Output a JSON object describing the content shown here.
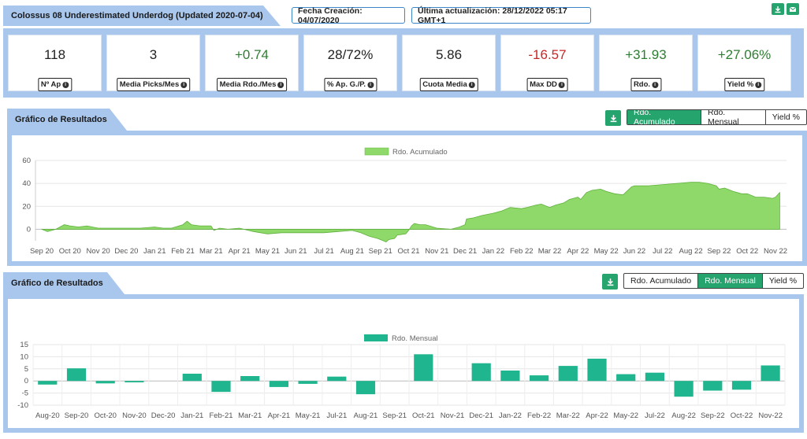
{
  "header": {
    "title": "Colossus 08 Underestimated Underdog (Updated 2020-07-04)",
    "fecha_creacion": "Fecha Creación: 04/07/2020",
    "ultima_actualizacion": "Última actualización: 28/12/2022 05:17 GMT+1",
    "icons": [
      "download-icon",
      "mail-icon"
    ]
  },
  "stats": [
    {
      "value": "118",
      "label": "Nº Ap",
      "tone": "neutral"
    },
    {
      "value": "3",
      "label": "Media Picks/Mes",
      "tone": "neutral"
    },
    {
      "value": "+0.74",
      "label": "Media Rdo./Mes",
      "tone": "pos"
    },
    {
      "value": "28/72%",
      "label": "% Ap. G./P.",
      "tone": "neutral"
    },
    {
      "value": "5.86",
      "label": "Cuota Media",
      "tone": "neutral"
    },
    {
      "value": "-16.57",
      "label": "Max DD",
      "tone": "neg"
    },
    {
      "value": "+31.93",
      "label": "Rdo.",
      "tone": "pos"
    },
    {
      "value": "+27.06%",
      "label": "Yield %",
      "tone": "pos"
    }
  ],
  "colors": {
    "accent": "#26a46e",
    "panel": "#a9c6ec",
    "area": "#8fd96a",
    "bar": "#1fb58e"
  },
  "chart1": {
    "title": "Gráfico de Resultados",
    "tabs": [
      {
        "label": "Rdo. Acumulado",
        "active": true
      },
      {
        "label": "Rdo. Mensual",
        "active": false
      },
      {
        "label": "Yield %",
        "active": false
      }
    ]
  },
  "chart2": {
    "title": "Gráfico de Resultados",
    "tabs": [
      {
        "label": "Rdo. Acumulado",
        "active": false
      },
      {
        "label": "Rdo. Mensual",
        "active": true
      },
      {
        "label": "Yield %",
        "active": false
      }
    ]
  },
  "chart_data": [
    {
      "type": "area",
      "legend": "Rdo. Acumulado",
      "legend_position": "top",
      "ylim": [
        -10,
        60
      ],
      "yticks": [
        0,
        20,
        40,
        60
      ],
      "xticks": [
        "Sep 20",
        "Oct 20",
        "Nov 20",
        "Dec 20",
        "Jan 21",
        "Feb 21",
        "Mar 21",
        "Apr 21",
        "May 21",
        "Jun 21",
        "Jul 21",
        "Aug 21",
        "Sep 21",
        "Oct 21",
        "Nov 21",
        "Dec 21",
        "Jan 22",
        "Feb 22",
        "Mar 22",
        "Apr 22",
        "May 22",
        "Jun 22",
        "Jul 22",
        "Aug 22",
        "Sep 22",
        "Oct 22",
        "Nov 22"
      ],
      "x": [
        0,
        0.2,
        0.5,
        0.8,
        1.0,
        1.3,
        1.6,
        2.0,
        2.5,
        3.0,
        3.5,
        4.0,
        4.3,
        4.6,
        5.0,
        5.15,
        5.3,
        5.6,
        6.0,
        6.1,
        6.3,
        6.6,
        7.0,
        7.5,
        8.0,
        8.5,
        9.0,
        9.5,
        10.0,
        10.5,
        11.0,
        11.3,
        11.6,
        11.9,
        12.0,
        12.1,
        12.2,
        12.3,
        12.5,
        12.6,
        12.9,
        13.0,
        13.1,
        13.2,
        13.4,
        13.6,
        14.0,
        14.5,
        14.8,
        15.0,
        15.05,
        15.3,
        15.6,
        16.0,
        16.3,
        16.6,
        17.0,
        17.2,
        17.5,
        17.7,
        18.0,
        18.2,
        18.5,
        18.7,
        19.0,
        19.1,
        19.3,
        19.5,
        19.8,
        20.0,
        20.3,
        20.6,
        20.9,
        21.0,
        21.5,
        22.0,
        22.5,
        23.0,
        23.3,
        23.6,
        23.9,
        24.0,
        24.2,
        24.5,
        24.8,
        25.0,
        25.3,
        25.6,
        25.9,
        26.0,
        26.15
      ],
      "y": [
        0,
        -2,
        0,
        4,
        3,
        2,
        3,
        1,
        1,
        1,
        1,
        2,
        1,
        1,
        4,
        7,
        4,
        3,
        3,
        -1,
        1,
        0,
        1,
        -2,
        -4,
        -3,
        -3,
        -3,
        -3,
        -2,
        -1,
        -3,
        -6,
        -8,
        -9,
        -10,
        -11,
        -9,
        -8,
        -5,
        -4,
        -1,
        3,
        5,
        4,
        4,
        1,
        0,
        2,
        4,
        9,
        10,
        12,
        14,
        16,
        19,
        18,
        19,
        21,
        22,
        19,
        21,
        23,
        26,
        28,
        26,
        32,
        34,
        35,
        33,
        31,
        30,
        37,
        38,
        38,
        39,
        40,
        41,
        41,
        40,
        38,
        35,
        36,
        33,
        31,
        31,
        28,
        28,
        27,
        28,
        32
      ]
    },
    {
      "type": "bar",
      "legend": "Rdo. Mensual",
      "legend_position": "top",
      "ylim": [
        -10,
        15
      ],
      "yticks": [
        -10,
        -5,
        0,
        5,
        10,
        15
      ],
      "categories": [
        "Aug-20",
        "Sep-20",
        "Oct-20",
        "Nov-20",
        "Dec-20",
        "Jan-21",
        "Feb-21",
        "Mar-21",
        "Apr-21",
        "May-21",
        "Jul-21",
        "Aug-21",
        "Sep-21",
        "Oct-21",
        "Nov-21",
        "Dec-21",
        "Jan-22",
        "Feb-22",
        "Mar-22",
        "Apr-22",
        "May-22",
        "Jul-22",
        "Aug-22",
        "Sep-22",
        "Oct-22",
        "Nov-22"
      ],
      "values": [
        -1.5,
        5.2,
        -1.0,
        -0.6,
        0,
        3.0,
        -4.5,
        2.0,
        -2.5,
        -1.2,
        1.8,
        -5.5,
        0,
        11.0,
        0,
        7.3,
        4.3,
        2.3,
        6.2,
        9.2,
        2.8,
        3.4,
        -6.5,
        -4.0,
        -3.6,
        6.4
      ]
    }
  ]
}
